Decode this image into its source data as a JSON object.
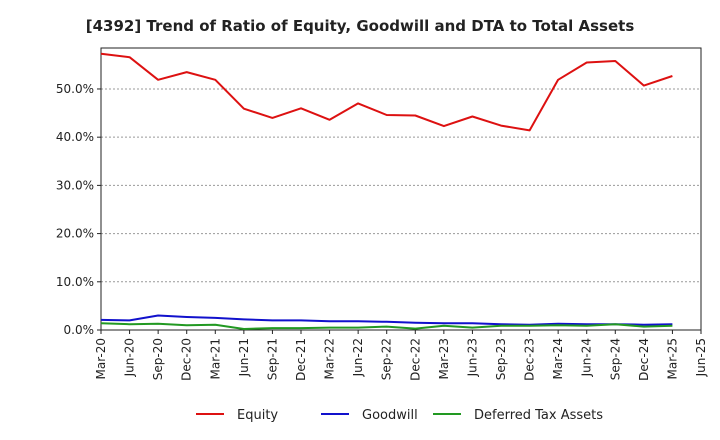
{
  "chart_data": {
    "type": "line",
    "title": "[4392]  Trend of Ratio of Equity, Goodwill and DTA to Total Assets",
    "xlabel": "",
    "ylabel": "",
    "x": [
      "Mar-20",
      "Jun-20",
      "Sep-20",
      "Dec-20",
      "Mar-21",
      "Jun-21",
      "Sep-21",
      "Dec-21",
      "Mar-22",
      "Jun-22",
      "Sep-22",
      "Dec-22",
      "Mar-23",
      "Jun-23",
      "Sep-23",
      "Dec-23",
      "Mar-24",
      "Jun-24",
      "Sep-24",
      "Dec-24",
      "Mar-25"
    ],
    "x_ticks": [
      "Mar-20",
      "Jun-20",
      "Sep-20",
      "Dec-20",
      "Mar-21",
      "Jun-21",
      "Sep-21",
      "Dec-21",
      "Mar-22",
      "Jun-22",
      "Sep-22",
      "Dec-22",
      "Mar-23",
      "Jun-23",
      "Sep-23",
      "Dec-23",
      "Mar-24",
      "Jun-24",
      "Sep-24",
      "Dec-24",
      "Mar-25",
      "Jun-25"
    ],
    "y_ticks": [
      "0.0%",
      "10.0%",
      "20.0%",
      "30.0%",
      "40.0%",
      "50.0%"
    ],
    "ylim": [
      0,
      58.5
    ],
    "grid": true,
    "legend_position": "bottom",
    "series": [
      {
        "name": "Equity",
        "color": "#dd1111",
        "values": [
          57.3,
          56.6,
          51.9,
          53.5,
          51.9,
          45.9,
          44.0,
          46.0,
          43.6,
          47.0,
          44.6,
          44.5,
          42.3,
          44.3,
          42.4,
          41.4,
          51.9,
          55.5,
          55.8,
          50.7,
          52.7
        ]
      },
      {
        "name": "Goodwill",
        "color": "#1111cc",
        "values": [
          2.1,
          2.0,
          3.0,
          2.7,
          2.5,
          2.2,
          2.0,
          2.0,
          1.8,
          1.8,
          1.7,
          1.5,
          1.4,
          1.4,
          1.2,
          1.1,
          1.3,
          1.2,
          1.2,
          1.1,
          1.2
        ]
      },
      {
        "name": "Deferred Tax Assets",
        "color": "#229922",
        "values": [
          1.4,
          1.2,
          1.3,
          1.0,
          1.1,
          0.2,
          0.4,
          0.4,
          0.5,
          0.5,
          0.7,
          0.3,
          0.9,
          0.5,
          0.9,
          0.9,
          1.0,
          0.9,
          1.2,
          0.7,
          0.9
        ]
      }
    ]
  }
}
